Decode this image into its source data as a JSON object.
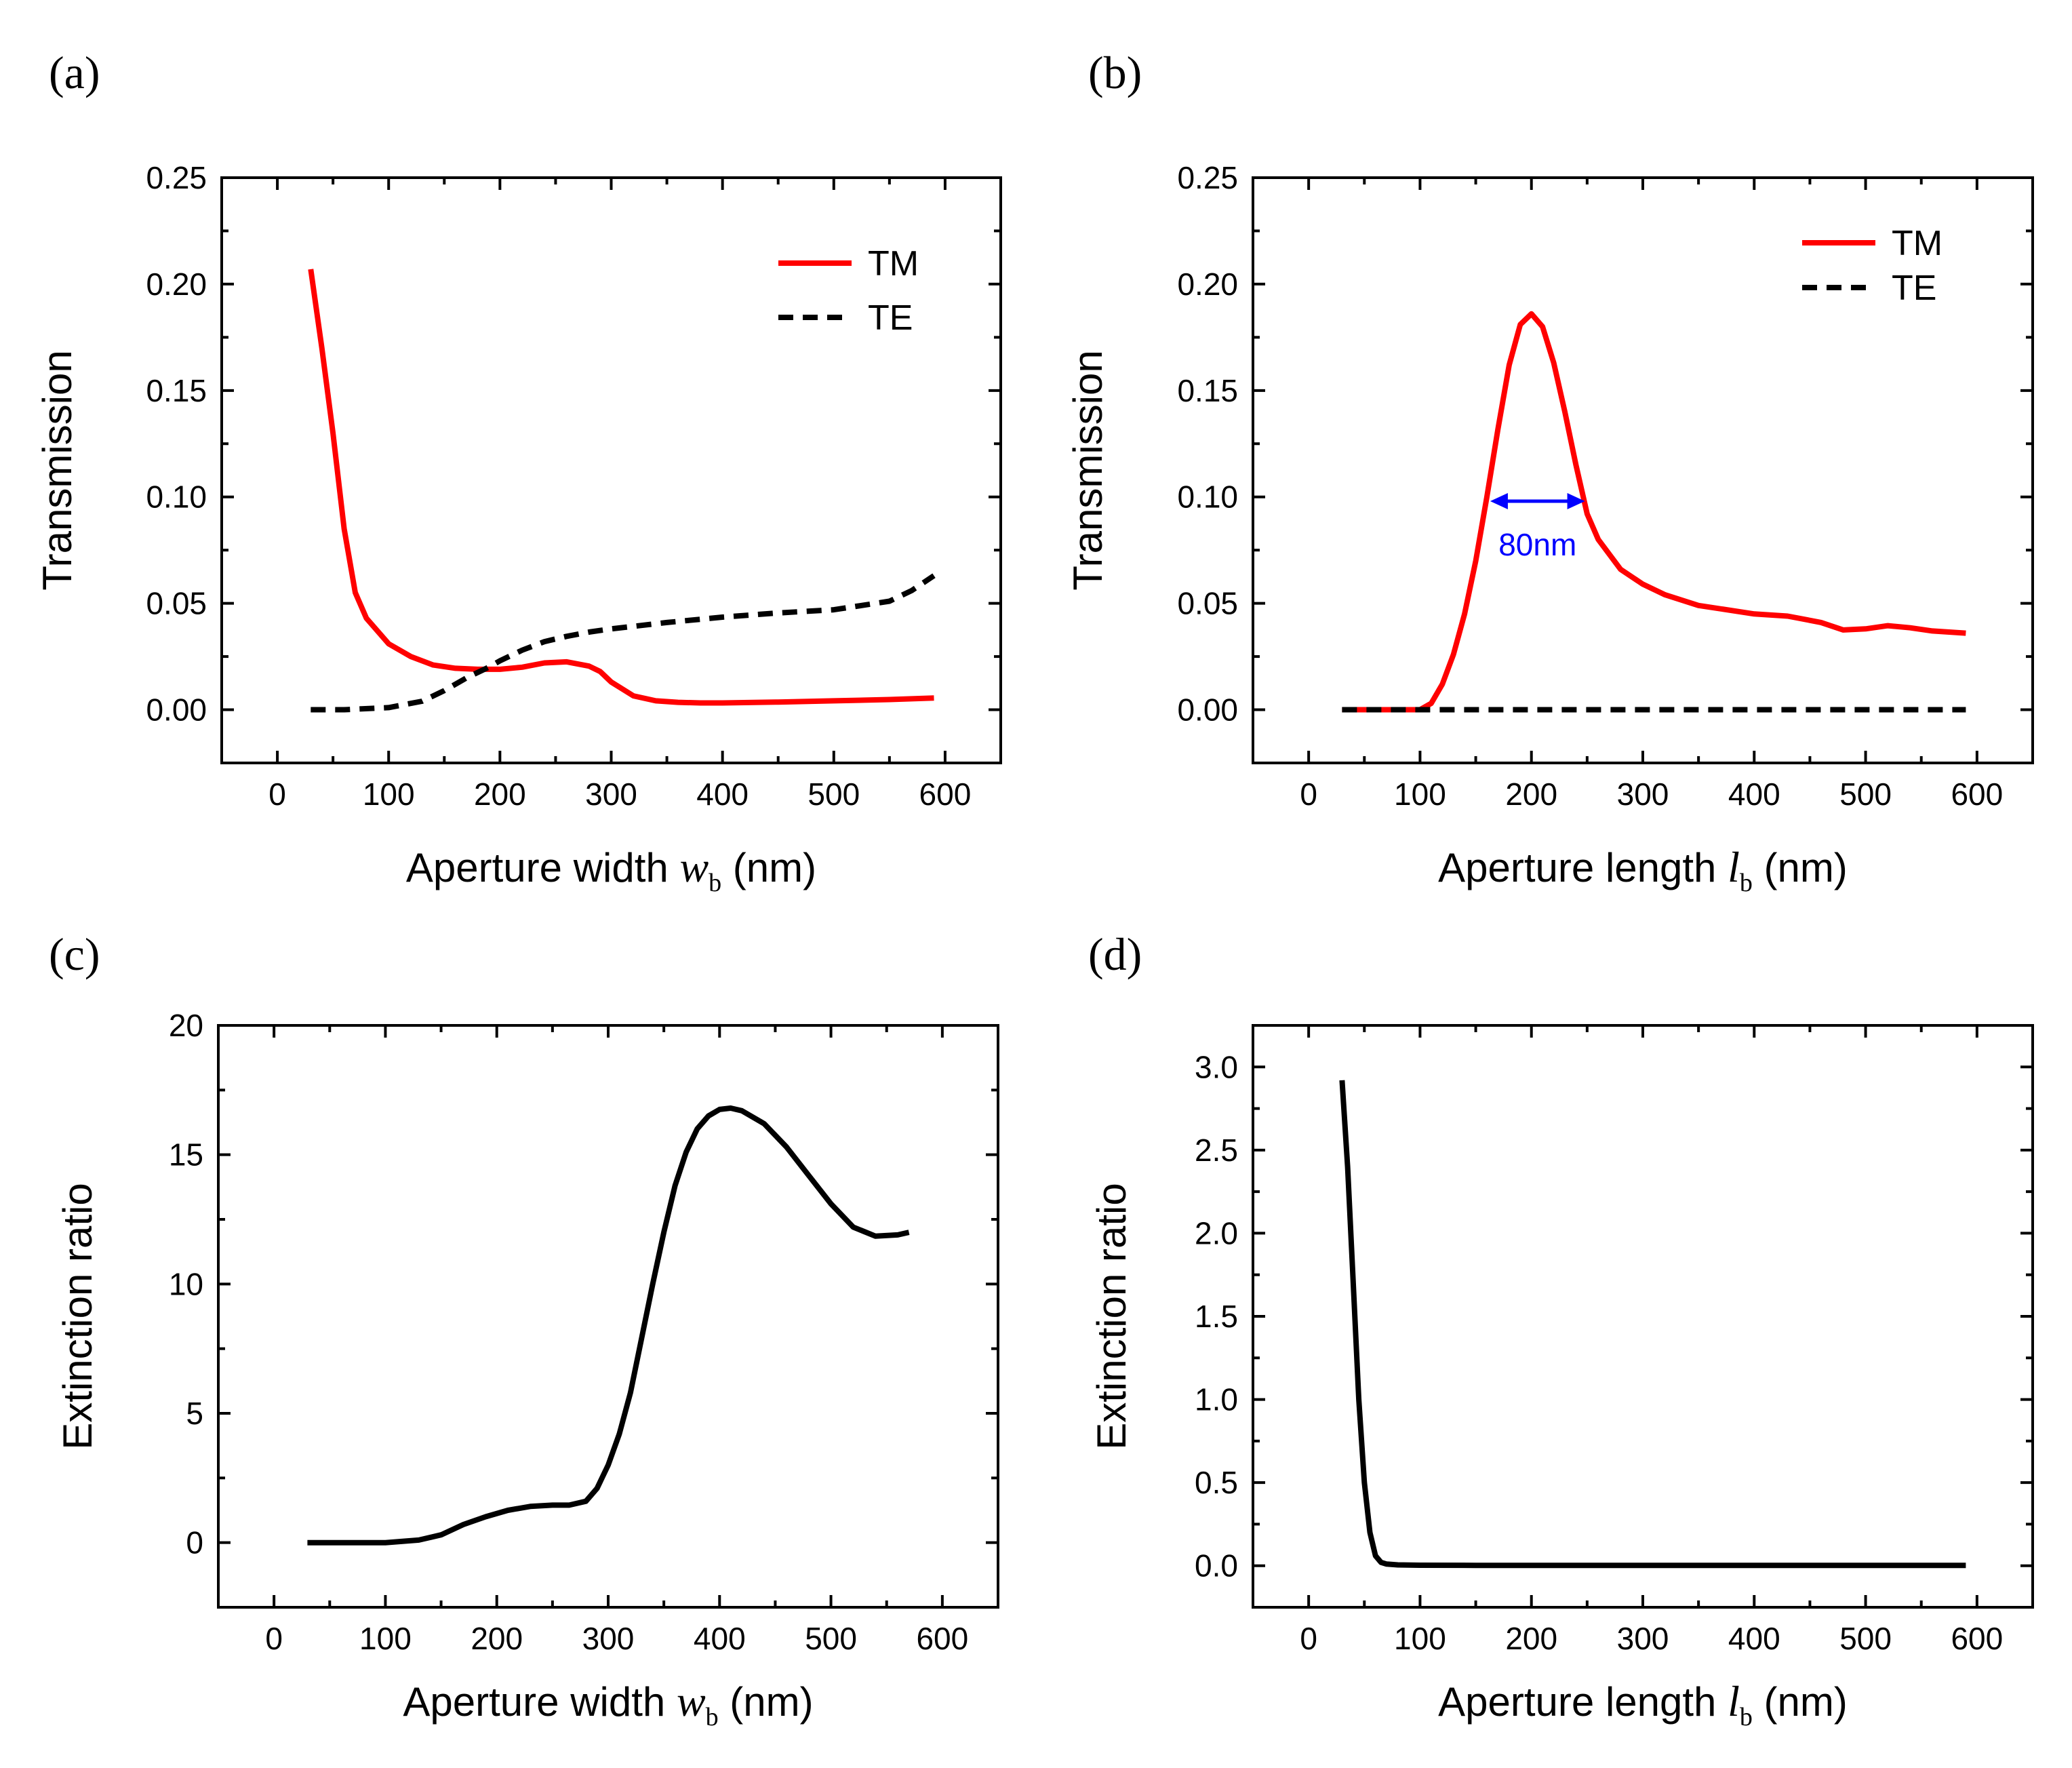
{
  "chart_data": [
    {
      "panel_label": "(a)",
      "type": "line",
      "xlabel": "Aperture width ",
      "xlabel_var": "w",
      "xlabel_sub": "b",
      "xlabel_unit": " (nm)",
      "ylabel": "Transmission",
      "xlim": [
        -50,
        650
      ],
      "ylim": [
        -0.025,
        0.25
      ],
      "xticks": [
        0,
        100,
        200,
        300,
        400,
        500,
        600
      ],
      "xtick_labels": [
        "0",
        "100",
        "200",
        "300",
        "400",
        "500",
        "600"
      ],
      "yticks": [
        0.0,
        0.05,
        0.1,
        0.15,
        0.2,
        0.25
      ],
      "ytick_labels": [
        "0.00",
        "0.05",
        "0.10",
        "0.15",
        "0.20",
        "0.25"
      ],
      "legend_position": "top-right",
      "series": [
        {
          "name": "TM",
          "color": "#ff0000",
          "dash": "solid",
          "x": [
            30,
            40,
            50,
            60,
            70,
            80,
            100,
            120,
            140,
            160,
            180,
            200,
            220,
            240,
            260,
            280,
            290,
            300,
            320,
            340,
            360,
            380,
            400,
            450,
            500,
            550,
            590
          ],
          "y": [
            0.207,
            0.17,
            0.13,
            0.085,
            0.055,
            0.043,
            0.031,
            0.025,
            0.021,
            0.0195,
            0.019,
            0.019,
            0.02,
            0.022,
            0.0225,
            0.0205,
            0.018,
            0.013,
            0.0065,
            0.0042,
            0.0035,
            0.0032,
            0.0032,
            0.0036,
            0.0042,
            0.0048,
            0.0055
          ]
        },
        {
          "name": "TE",
          "color": "#000000",
          "dash": "dashed",
          "x": [
            30,
            60,
            100,
            130,
            150,
            170,
            190,
            200,
            220,
            240,
            260,
            280,
            300,
            350,
            400,
            450,
            500,
            550,
            570,
            590
          ],
          "y": [
            0.0,
            0.0,
            0.001,
            0.004,
            0.009,
            0.015,
            0.02,
            0.023,
            0.028,
            0.032,
            0.0345,
            0.0365,
            0.038,
            0.041,
            0.0435,
            0.0455,
            0.047,
            0.051,
            0.056,
            0.063
          ]
        }
      ]
    },
    {
      "panel_label": "(b)",
      "type": "line",
      "xlabel": "Aperture length ",
      "xlabel_var": "l",
      "xlabel_sub": "b",
      "xlabel_unit": " (nm)",
      "ylabel": "Transmission",
      "xlim": [
        -50,
        650
      ],
      "ylim": [
        -0.025,
        0.25
      ],
      "xticks": [
        0,
        100,
        200,
        300,
        400,
        500,
        600
      ],
      "xtick_labels": [
        "0",
        "100",
        "200",
        "300",
        "400",
        "500",
        "600"
      ],
      "yticks": [
        0.0,
        0.05,
        0.1,
        0.15,
        0.2,
        0.25
      ],
      "ytick_labels": [
        "0.00",
        "0.05",
        "0.10",
        "0.15",
        "0.20",
        "0.25"
      ],
      "legend_position": "top-right",
      "annotation": {
        "text": "80nm",
        "x_start": 163,
        "x_end": 248,
        "y": 0.098,
        "color": "#0000ff"
      },
      "series": [
        {
          "name": "TM",
          "color": "#ff0000",
          "dash": "solid",
          "x": [
            30,
            100,
            110,
            120,
            130,
            140,
            150,
            160,
            170,
            180,
            190,
            200,
            210,
            220,
            230,
            240,
            250,
            260,
            280,
            300,
            320,
            350,
            400,
            430,
            460,
            480,
            500,
            520,
            540,
            560,
            590
          ],
          "y": [
            0.0,
            0.0,
            0.003,
            0.012,
            0.026,
            0.045,
            0.07,
            0.1,
            0.132,
            0.162,
            0.181,
            0.186,
            0.18,
            0.163,
            0.14,
            0.115,
            0.092,
            0.08,
            0.066,
            0.059,
            0.054,
            0.049,
            0.045,
            0.044,
            0.041,
            0.0375,
            0.038,
            0.0395,
            0.0385,
            0.037,
            0.036
          ]
        },
        {
          "name": "TE",
          "color": "#000000",
          "dash": "dashed",
          "x": [
            30,
            590
          ],
          "y": [
            0.0,
            0.0
          ]
        }
      ]
    },
    {
      "panel_label": "(c)",
      "type": "line",
      "xlabel": "Aperture width ",
      "xlabel_var": "w",
      "xlabel_sub": "b",
      "xlabel_unit": " (nm)",
      "ylabel": "Extinction ratio",
      "xlim": [
        -50,
        650
      ],
      "ylim": [
        -2.5,
        20
      ],
      "xticks": [
        0,
        100,
        200,
        300,
        400,
        500,
        600
      ],
      "xtick_labels": [
        "0",
        "100",
        "200",
        "300",
        "400",
        "500",
        "600"
      ],
      "yticks": [
        0,
        5,
        10,
        15,
        20
      ],
      "ytick_labels": [
        "0",
        "5",
        "10",
        "15",
        "20"
      ],
      "series": [
        {
          "name": "Extinction ratio",
          "color": "#000000",
          "dash": "solid",
          "x": [
            30,
            60,
            100,
            130,
            150,
            170,
            190,
            210,
            230,
            250,
            265,
            280,
            290,
            300,
            310,
            320,
            330,
            340,
            350,
            360,
            370,
            380,
            390,
            400,
            410,
            420,
            440,
            460,
            480,
            500,
            520,
            540,
            560,
            570
          ],
          "y": [
            0.0,
            0.0,
            0.0,
            0.1,
            0.3,
            0.7,
            1.0,
            1.25,
            1.4,
            1.45,
            1.45,
            1.6,
            2.1,
            3.0,
            4.2,
            5.8,
            7.9,
            10.0,
            12.0,
            13.8,
            15.1,
            16.0,
            16.5,
            16.75,
            16.8,
            16.7,
            16.2,
            15.3,
            14.2,
            13.1,
            12.2,
            11.85,
            11.9,
            12.0
          ]
        }
      ]
    },
    {
      "panel_label": "(d)",
      "type": "line",
      "xlabel": "Aperture length  ",
      "xlabel_var": "l",
      "xlabel_sub": "b",
      "xlabel_unit": " (nm)",
      "ylabel": "Extinction ratio",
      "xlim": [
        -50,
        650
      ],
      "ylim": [
        -0.25,
        3.25
      ],
      "xticks": [
        0,
        100,
        200,
        300,
        400,
        500,
        600
      ],
      "xtick_labels": [
        "0",
        "100",
        "200",
        "300",
        "400",
        "500",
        "600"
      ],
      "yticks": [
        0.0,
        0.5,
        1.0,
        1.5,
        2.0,
        2.5,
        3.0
      ],
      "ytick_labels": [
        "0.0",
        "0.5",
        "1.0",
        "1.5",
        "2.0",
        "2.5",
        "3.0"
      ],
      "series": [
        {
          "name": "Extinction ratio",
          "color": "#000000",
          "dash": "solid",
          "x": [
            30,
            35,
            40,
            45,
            50,
            55,
            60,
            65,
            70,
            80,
            100,
            150,
            200,
            300,
            400,
            500,
            590
          ],
          "y": [
            2.92,
            2.4,
            1.7,
            1.0,
            0.5,
            0.2,
            0.06,
            0.02,
            0.01,
            0.005,
            0.003,
            0.002,
            0.002,
            0.002,
            0.002,
            0.002,
            0.002
          ]
        }
      ]
    }
  ]
}
